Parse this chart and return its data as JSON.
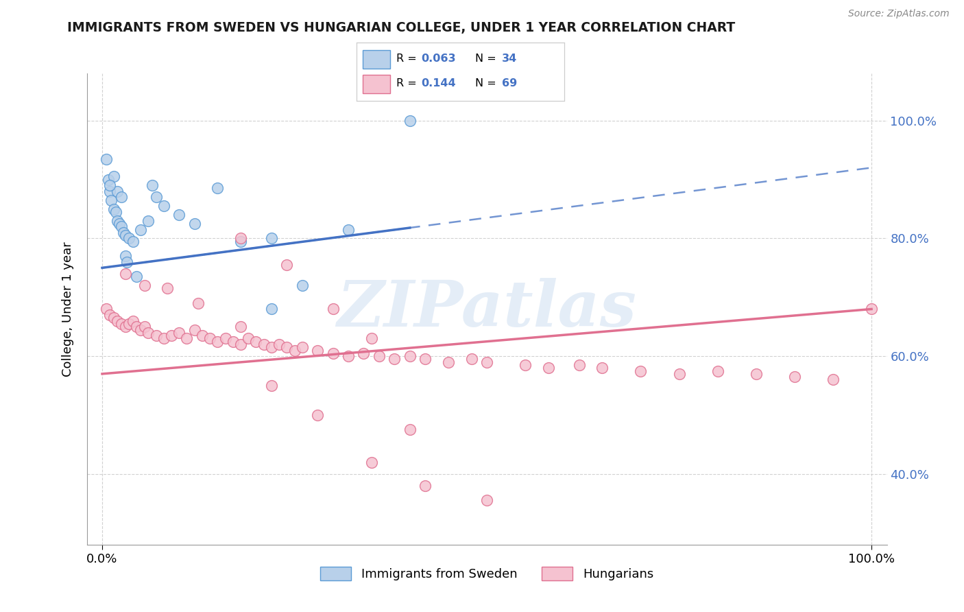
{
  "title": "IMMIGRANTS FROM SWEDEN VS HUNGARIAN COLLEGE, UNDER 1 YEAR CORRELATION CHART",
  "source": "Source: ZipAtlas.com",
  "ylabel": "College, Under 1 year",
  "legend_label_blue": "Immigrants from Sweden",
  "legend_label_pink": "Hungarians",
  "r_blue": "0.063",
  "n_blue": "34",
  "r_pink": "0.144",
  "n_pink": "69",
  "blue_face": "#b8d0ea",
  "blue_edge": "#5b9bd5",
  "blue_line": "#4472c4",
  "pink_face": "#f5c2d0",
  "pink_edge": "#e07090",
  "pink_line": "#e07090",
  "right_label_color": "#4472c4",
  "watermark": "ZIPatlas",
  "watermark_color": "#c5d8ee",
  "title_color": "#1a1a1a",
  "grid_color": "#cccccc",
  "sweden_x": [
    0.5,
    0.8,
    1.0,
    1.2,
    1.5,
    1.8,
    2.0,
    2.2,
    2.5,
    2.8,
    3.0,
    3.5,
    4.0,
    5.0,
    6.0,
    7.0,
    8.0,
    10.0,
    12.0,
    15.0,
    18.0,
    22.0,
    26.0,
    32.0,
    22.0,
    3.0,
    2.0,
    1.5,
    1.0,
    2.5,
    3.2,
    4.5,
    6.5,
    40.0
  ],
  "sweden_y": [
    93.5,
    90.0,
    88.0,
    86.5,
    85.0,
    84.5,
    83.0,
    82.5,
    82.0,
    81.0,
    80.5,
    80.0,
    79.5,
    81.5,
    83.0,
    87.0,
    85.5,
    84.0,
    82.5,
    88.5,
    79.5,
    80.0,
    72.0,
    81.5,
    68.0,
    77.0,
    88.0,
    90.5,
    89.0,
    87.0,
    76.0,
    73.5,
    89.0,
    100.0
  ],
  "hungarian_x": [
    0.5,
    1.0,
    1.5,
    2.0,
    2.5,
    3.0,
    3.5,
    4.0,
    4.5,
    5.0,
    5.5,
    6.0,
    7.0,
    8.0,
    9.0,
    10.0,
    11.0,
    12.0,
    13.0,
    14.0,
    15.0,
    16.0,
    17.0,
    18.0,
    19.0,
    20.0,
    21.0,
    22.0,
    23.0,
    24.0,
    25.0,
    26.0,
    28.0,
    30.0,
    32.0,
    34.0,
    36.0,
    38.0,
    40.0,
    42.0,
    45.0,
    48.0,
    50.0,
    55.0,
    58.0,
    62.0,
    65.0,
    70.0,
    75.0,
    80.0,
    85.0,
    90.0,
    95.0,
    100.0,
    3.0,
    5.5,
    8.5,
    12.5,
    18.0,
    24.0,
    30.0,
    35.0,
    40.0,
    18.0,
    22.0,
    28.0,
    35.0,
    42.0,
    50.0
  ],
  "hungarian_y": [
    68.0,
    67.0,
    66.5,
    66.0,
    65.5,
    65.0,
    65.5,
    66.0,
    65.0,
    64.5,
    65.0,
    64.0,
    63.5,
    63.0,
    63.5,
    64.0,
    63.0,
    64.5,
    63.5,
    63.0,
    62.5,
    63.0,
    62.5,
    62.0,
    63.0,
    62.5,
    62.0,
    61.5,
    62.0,
    61.5,
    61.0,
    61.5,
    61.0,
    60.5,
    60.0,
    60.5,
    60.0,
    59.5,
    60.0,
    59.5,
    59.0,
    59.5,
    59.0,
    58.5,
    58.0,
    58.5,
    58.0,
    57.5,
    57.0,
    57.5,
    57.0,
    56.5,
    56.0,
    68.0,
    74.0,
    72.0,
    71.5,
    69.0,
    65.0,
    75.5,
    68.0,
    63.0,
    47.5,
    80.0,
    55.0,
    50.0,
    42.0,
    38.0,
    35.5
  ],
  "xlim": [
    -2,
    102
  ],
  "ylim": [
    28,
    108
  ],
  "yticks": [
    40,
    60,
    80,
    100
  ],
  "ytick_labels_right": [
    "40.0%",
    "60.0%",
    "80.0%",
    "100.0%"
  ],
  "xticks": [
    0,
    100
  ],
  "xtick_labels": [
    "0.0%",
    "100.0%"
  ],
  "blue_solid_x_end": 40,
  "blue_line_intercept": 75.0,
  "blue_line_slope": 0.17,
  "pink_line_intercept": 57.0,
  "pink_line_slope": 0.11
}
